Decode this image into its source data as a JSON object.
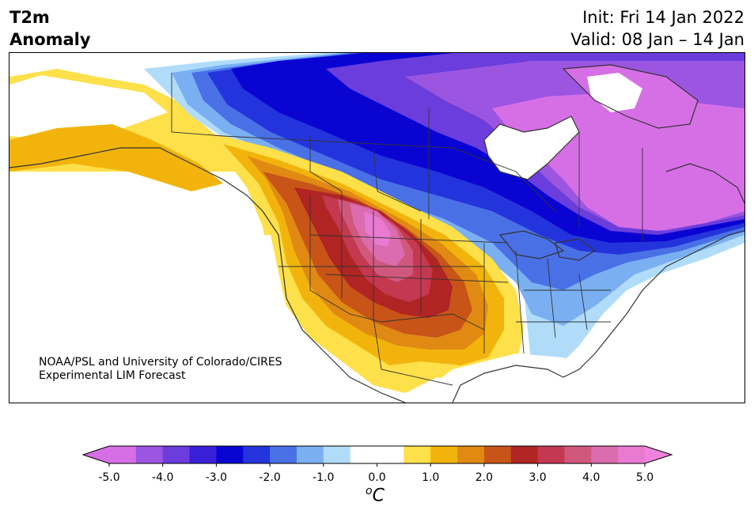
{
  "title": {
    "line1": "T2m",
    "line2": "Anomaly",
    "init": "Init: Fri 14 Jan 2022",
    "valid": "Valid: 08 Jan – 14 Jan"
  },
  "credit": {
    "line1": "NOAA/PSL and University of Colorado/CIRES",
    "line2": "Experimental LIM Forecast"
  },
  "colorbar": {
    "unit_base": "C",
    "unit_sup": "o",
    "tick_labels": [
      "-5.0",
      "-4.0",
      "-3.0",
      "-2.0",
      "-1.0",
      "0.0",
      "1.0",
      "2.0",
      "3.0",
      "4.0",
      "5.0"
    ],
    "colors": [
      "#d66fe6",
      "#9b55e0",
      "#6a3ddc",
      "#3a1fd8",
      "#0a04d2",
      "#2434dc",
      "#4a70e6",
      "#7ab0f2",
      "#b0dcfa",
      "#ffffff",
      "#ffffff",
      "#fde04a",
      "#f2b40c",
      "#e08a14",
      "#c85418",
      "#b02424",
      "#c43850",
      "#d0587c",
      "#dc6cb0",
      "#e87ad2"
    ],
    "under_color": "#d66fe6",
    "over_color": "#ee82dc"
  },
  "map": {
    "ocean_color": "#ffffff",
    "border_color": "#333333"
  }
}
